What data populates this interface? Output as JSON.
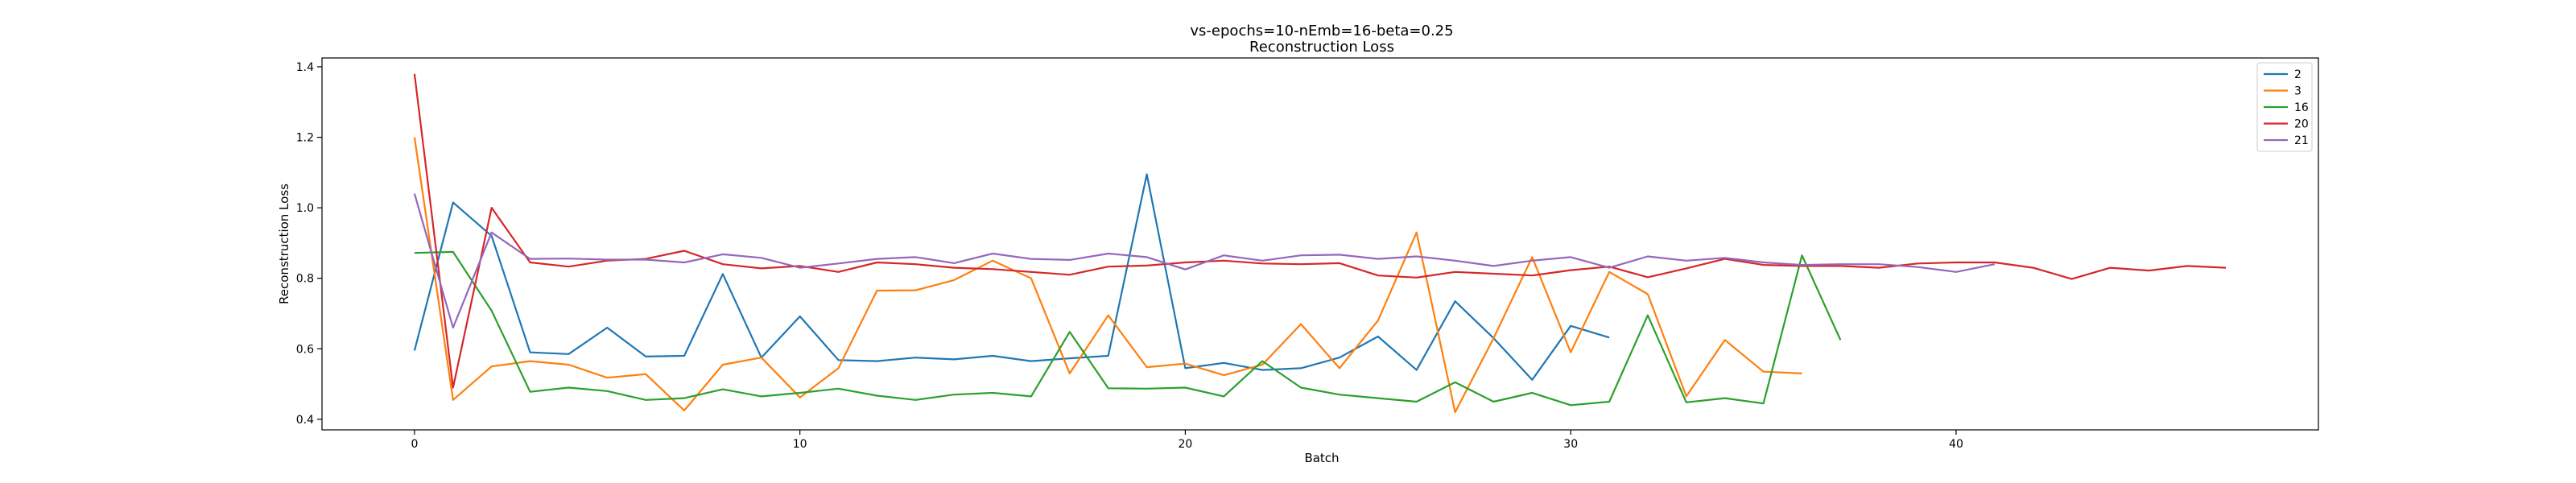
{
  "chart_data": {
    "type": "line",
    "title": "vs-epochs=10-nEmb=16-beta=0.25",
    "subtitle": "Reconstruction Loss",
    "xlabel": "Batch",
    "ylabel": "Reconstruction Loss",
    "xlim": [
      -2.4,
      49.4
    ],
    "ylim": [
      0.37,
      1.425
    ],
    "xticks": [
      0,
      10,
      20,
      30,
      40
    ],
    "yticks": [
      0.4,
      0.6,
      0.8,
      1.0,
      1.2,
      1.4
    ],
    "ytick_labels": [
      "0.4",
      "0.6",
      "0.8",
      "1.0",
      "1.2",
      "1.4"
    ],
    "grid": false,
    "legend_position": "top-right",
    "series": [
      {
        "name": "2",
        "color": "#1f77b4",
        "values": [
          0.595,
          1.015,
          0.92,
          0.59,
          0.585,
          0.66,
          0.578,
          0.58,
          0.812,
          0.575,
          0.692,
          0.568,
          0.565,
          0.575,
          0.57,
          0.58,
          0.565,
          0.573,
          0.58,
          1.095,
          0.545,
          0.56,
          0.54,
          0.545,
          0.575,
          0.635,
          0.54,
          0.735,
          0.63,
          0.512,
          0.665,
          0.632
        ]
      },
      {
        "name": "3",
        "color": "#ff7f0e",
        "values": [
          1.2,
          0.455,
          0.55,
          0.565,
          0.555,
          0.518,
          0.528,
          0.425,
          0.555,
          0.575,
          0.462,
          0.545,
          0.765,
          0.766,
          0.795,
          0.85,
          0.8,
          0.53,
          0.695,
          0.548,
          0.558,
          0.525,
          0.555,
          0.67,
          0.545,
          0.68,
          0.93,
          0.42,
          0.63,
          0.86,
          0.59,
          0.818,
          0.755,
          0.465,
          0.625,
          0.535,
          0.53
        ]
      },
      {
        "name": "16",
        "color": "#2ca02c",
        "values": [
          0.872,
          0.875,
          0.708,
          0.478,
          0.49,
          0.48,
          0.455,
          0.46,
          0.485,
          0.465,
          0.475,
          0.487,
          0.467,
          0.455,
          0.47,
          0.475,
          0.465,
          0.648,
          0.488,
          0.487,
          0.49,
          0.465,
          0.565,
          0.49,
          0.47,
          0.46,
          0.45,
          0.505,
          0.45,
          0.475,
          0.44,
          0.45,
          0.695,
          0.448,
          0.46,
          0.445,
          0.865,
          0.625
        ]
      },
      {
        "name": "20",
        "color": "#d62728",
        "values": [
          1.38,
          0.49,
          1.0,
          0.845,
          0.833,
          0.85,
          0.855,
          0.878,
          0.84,
          0.828,
          0.835,
          0.818,
          0.845,
          0.84,
          0.83,
          0.826,
          0.818,
          0.81,
          0.833,
          0.836,
          0.845,
          0.85,
          0.842,
          0.84,
          0.843,
          0.808,
          0.802,
          0.818,
          0.813,
          0.808,
          0.823,
          0.833,
          0.803,
          0.828,
          0.855,
          0.838,
          0.835,
          0.835,
          0.83,
          0.842,
          0.845,
          0.845,
          0.83,
          0.798,
          0.83,
          0.822,
          0.835,
          0.83
        ]
      },
      {
        "name": "21",
        "color": "#9467bd",
        "values": [
          1.04,
          0.66,
          0.93,
          0.855,
          0.856,
          0.853,
          0.853,
          0.845,
          0.868,
          0.858,
          0.83,
          0.842,
          0.855,
          0.86,
          0.843,
          0.87,
          0.855,
          0.852,
          0.87,
          0.86,
          0.825,
          0.865,
          0.85,
          0.865,
          0.867,
          0.855,
          0.862,
          0.85,
          0.835,
          0.85,
          0.86,
          0.83,
          0.862,
          0.85,
          0.858,
          0.845,
          0.838,
          0.84,
          0.84,
          0.832,
          0.818,
          0.84
        ]
      }
    ]
  }
}
